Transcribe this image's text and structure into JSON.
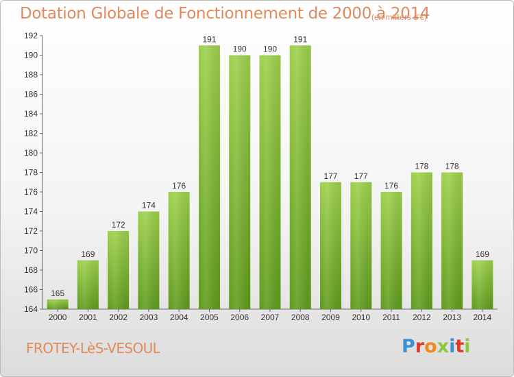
{
  "header": {
    "title": "Dotation Globale de Fonctionnement de 2000 à 2014",
    "unit": "(en milliers d'€)"
  },
  "footer": {
    "commune": "FROTEY-LèS-VESOUL",
    "logo": "Proxiti"
  },
  "colors": {
    "bar_top": "#9dd04b",
    "bar_bottom": "#5f9b1c",
    "title": "#e08a5c",
    "logo_letters": [
      "#3b8fd6",
      "#e03a2a",
      "#f08a1a",
      "#8dc63f",
      "#3b8fd6",
      "#e03a2a",
      "#8dc63f"
    ]
  },
  "chart_data": {
    "type": "bar",
    "title": "Dotation Globale de Fonctionnement de 2000 à 2014",
    "subtitle": "(en milliers d'€)",
    "categories": [
      "2000",
      "2001",
      "2002",
      "2003",
      "2004",
      "2005",
      "2006",
      "2007",
      "2008",
      "2009",
      "2010",
      "2011",
      "2012",
      "2013",
      "2014"
    ],
    "values": [
      165,
      169,
      172,
      174,
      176,
      191,
      190,
      190,
      191,
      177,
      177,
      176,
      178,
      178,
      169
    ],
    "ylim": [
      164,
      192
    ],
    "yticks": [
      164,
      166,
      168,
      170,
      172,
      174,
      176,
      178,
      180,
      182,
      184,
      186,
      188,
      190,
      192
    ],
    "grid": false,
    "data_labels": true
  }
}
